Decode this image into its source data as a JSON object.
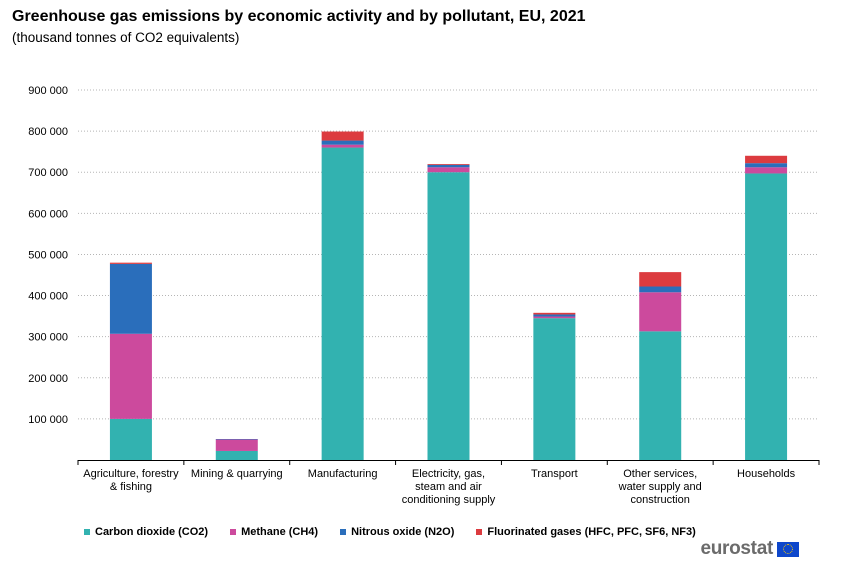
{
  "header": {
    "title": "Greenhouse gas emissions by economic activity and by pollutant, EU, 2021",
    "subtitle": "(thousand tonnes of CO2 equivalents)"
  },
  "brand": {
    "name": "eurostat"
  },
  "chart_data": {
    "type": "bar",
    "stacked": true,
    "title": "Greenhouse gas emissions by economic activity and by pollutant, EU, 2021",
    "subtitle": "(thousand tonnes of CO2 equivalents)",
    "xlabel": "",
    "ylabel": "",
    "ylim": [
      0,
      900000
    ],
    "yticks": [
      100000,
      200000,
      300000,
      400000,
      500000,
      600000,
      700000,
      800000,
      900000
    ],
    "ytick_labels": [
      "100 000",
      "200 000",
      "300 000",
      "400 000",
      "500 000",
      "600 000",
      "700 000",
      "800 000",
      "900 000"
    ],
    "grid": true,
    "legend_position": "bottom",
    "categories": [
      [
        "Agriculture, forestry",
        "& fishing"
      ],
      [
        "Mining & quarrying"
      ],
      [
        "Manufacturing"
      ],
      [
        "Electricity, gas,",
        "steam and air",
        "conditioning supply"
      ],
      [
        "Transport"
      ],
      [
        "Other services,",
        "water supply and",
        "construction"
      ],
      [
        "Households"
      ]
    ],
    "series": [
      {
        "name": "Carbon dioxide (CO2)",
        "color": "#32b2b0",
        "values": [
          100000,
          22000,
          760000,
          700000,
          345000,
          313000,
          697000
        ]
      },
      {
        "name": "Methane (CH4)",
        "color": "#cc4a9d",
        "values": [
          207000,
          28000,
          7000,
          12000,
          4000,
          95000,
          15000
        ]
      },
      {
        "name": "Nitrous oxide (N2O)",
        "color": "#2a6ebb",
        "values": [
          170000,
          1000,
          10000,
          6000,
          5000,
          14000,
          10000
        ]
      },
      {
        "name": "Fluorinated gases (HFC, PFC, SF6, NF3)",
        "color": "#dc3b3f",
        "values": [
          3000,
          0,
          22000,
          2000,
          4000,
          35000,
          18000
        ]
      }
    ]
  }
}
